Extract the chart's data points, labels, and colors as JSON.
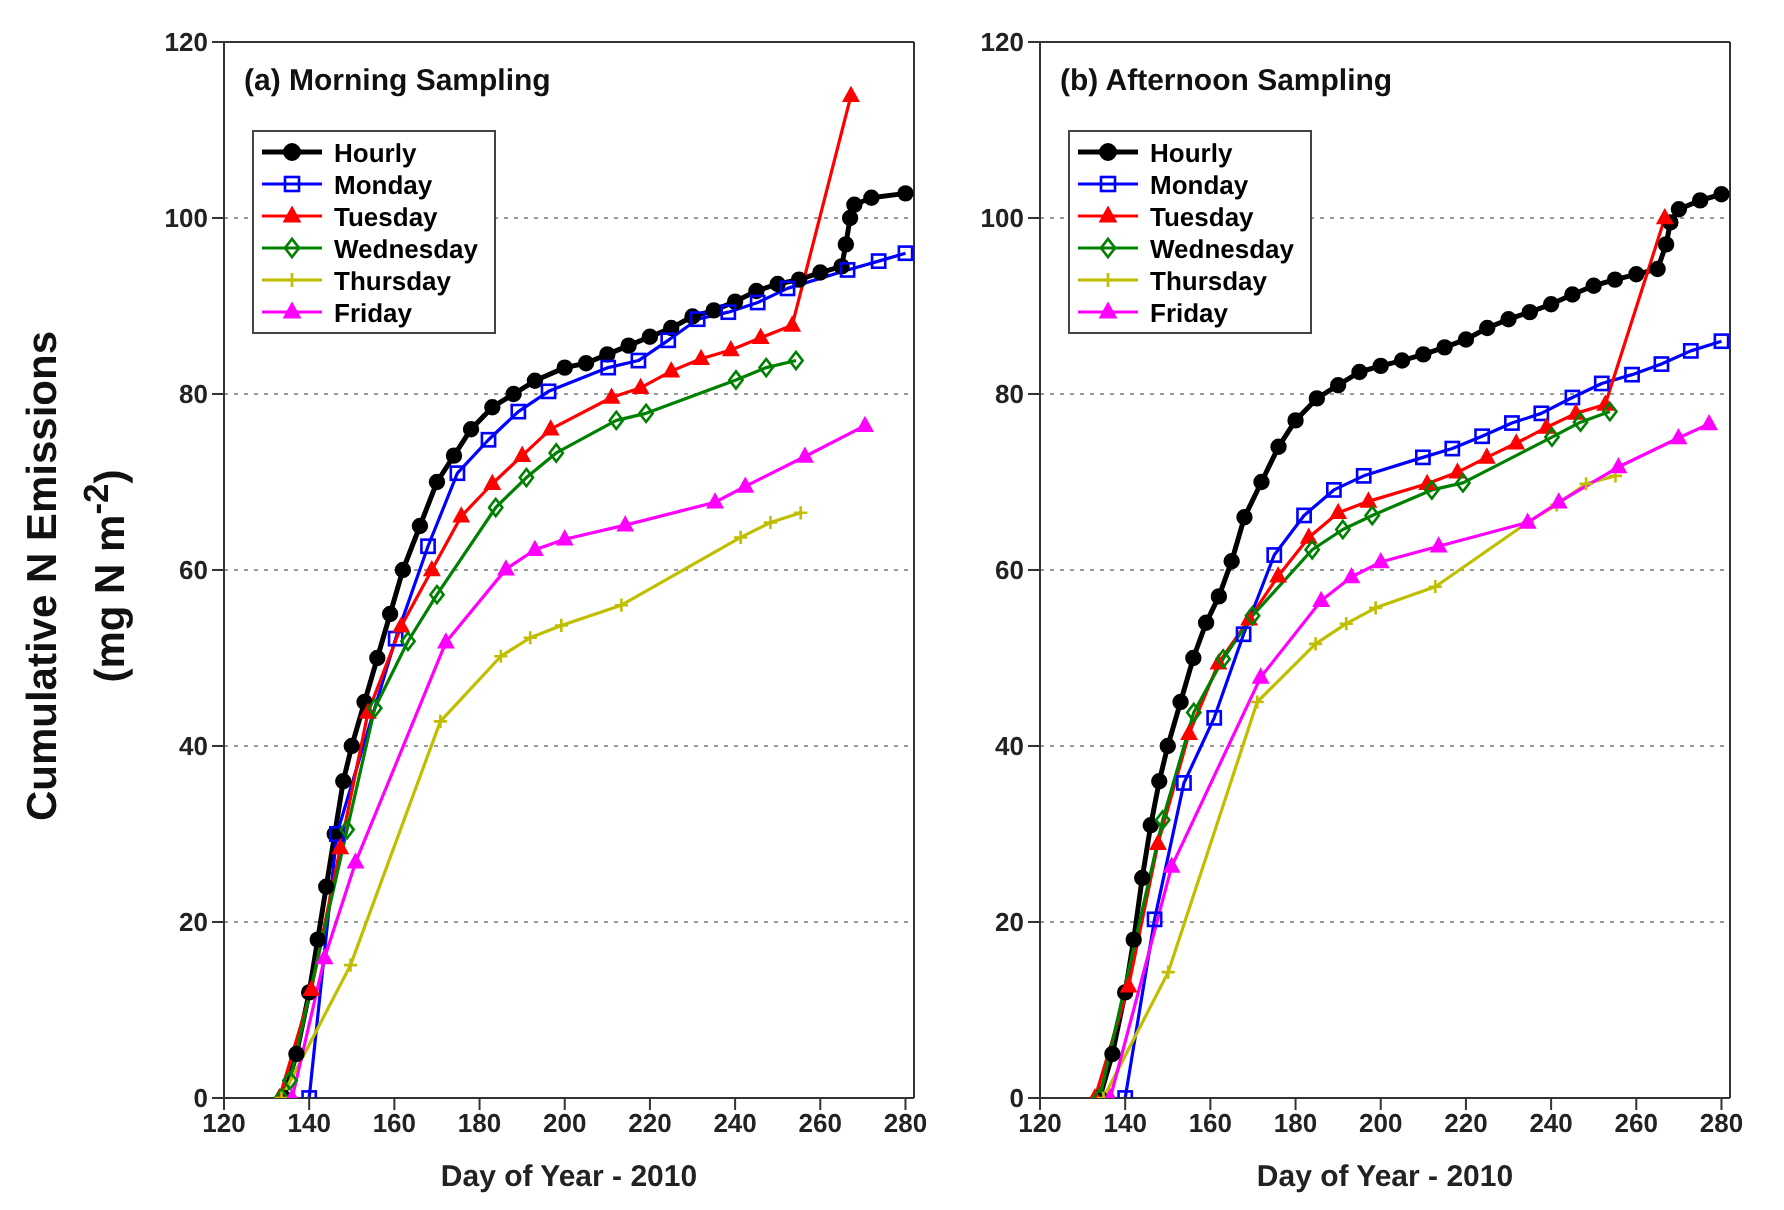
{
  "chart_data": [
    {
      "type": "line",
      "title": "(a) Morning Sampling",
      "xlabel": "Day of Year - 2010",
      "ylabel": "Cumulative N Emissions (mg N m$^{-2}$)",
      "xlim": [
        120,
        282
      ],
      "xticks": [
        120,
        140,
        160,
        180,
        200,
        220,
        240,
        260,
        280
      ],
      "ylim": [
        0,
        120
      ],
      "yticks": [
        0,
        20,
        40,
        60,
        80,
        100,
        120
      ],
      "grid": "y",
      "legend": "top left",
      "series": [
        {
          "name": "Hourly",
          "color": "#000000",
          "marker": "circle",
          "x": [
            134,
            137,
            140,
            142,
            144,
            146,
            148,
            150,
            153,
            156,
            159,
            162,
            166,
            170,
            174,
            178,
            183,
            188,
            193,
            200,
            205,
            210,
            215,
            220,
            225,
            230,
            235,
            240,
            245,
            250,
            255,
            260,
            265,
            266,
            267,
            268,
            272,
            280
          ],
          "values": [
            0,
            5,
            12,
            18,
            24,
            30,
            36,
            40,
            45,
            50,
            55,
            60,
            65,
            70,
            73,
            76,
            78.5,
            80,
            81.5,
            83,
            83.5,
            84.5,
            85.5,
            86.5,
            87.5,
            88.8,
            89.5,
            90.5,
            91.7,
            92.5,
            93,
            93.8,
            94.5,
            97,
            100,
            101.5,
            102.3,
            102.8
          ]
        },
        {
          "name": "Monday",
          "color": "#0000ff",
          "marker": "square",
          "x": [
            140,
            146.5,
            160.3,
            167.9,
            174.8,
            182.1,
            189.1,
            196.2,
            210.2,
            217.3,
            224.3,
            231.2,
            238.4,
            245.3,
            252.3,
            266.4,
            273.7,
            280
          ],
          "values": [
            0,
            30,
            52.2,
            62.7,
            71,
            74.8,
            78,
            80.3,
            83,
            83.8,
            86.1,
            88.5,
            89.3,
            90.4,
            92,
            94.1,
            95.1,
            96
          ]
        },
        {
          "name": "Tuesday",
          "color": "#ff0000",
          "marker": "triangle",
          "x": [
            133,
            140.5,
            147.3,
            153.8,
            161.6,
            168.8,
            175.7,
            183,
            190,
            196.7,
            211,
            217.8,
            225,
            232,
            239,
            246,
            253.4,
            267.2
          ],
          "values": [
            0,
            12.3,
            28.4,
            43.8,
            53.6,
            60,
            66.1,
            69.8,
            73,
            76,
            79.6,
            80.7,
            82.6,
            84,
            85,
            86.4,
            87.8,
            113.9
          ]
        },
        {
          "name": "Wednesday",
          "color": "#008000",
          "marker": "diamond",
          "x": [
            133.5,
            135.5,
            148.9,
            155.4,
            163.2,
            170,
            183.8,
            191,
            198,
            212.1,
            219.1,
            240.2,
            247.3,
            254.3
          ],
          "values": [
            0,
            2,
            30.5,
            44.3,
            51.9,
            57.2,
            67.1,
            70.5,
            73.3,
            77,
            77.8,
            81.6,
            83,
            83.8
          ]
        },
        {
          "name": "Thursday",
          "color": "#bfbf00",
          "marker": "cross",
          "x": [
            133.5,
            149.7,
            170.8,
            185,
            191.9,
            199.2,
            213.3,
            241.3,
            248.3,
            255.4
          ],
          "values": [
            0,
            15.1,
            42.8,
            50.2,
            52.3,
            53.7,
            56,
            63.7,
            65.4,
            66.5
          ]
        },
        {
          "name": "Friday",
          "color": "#ff00ff",
          "marker": "triangle",
          "x": [
            136,
            143.6,
            150.9,
            172.1,
            186.2,
            193,
            200,
            214.2,
            235.3,
            242.4,
            256.4,
            270.5
          ],
          "values": [
            0,
            15.9,
            26.8,
            51.8,
            60.1,
            62.3,
            63.5,
            65.1,
            67.7,
            69.5,
            72.9,
            76.4
          ]
        }
      ]
    },
    {
      "type": "line",
      "title": "(b) Afternoon Sampling",
      "xlabel": "Day of Year - 2010",
      "xlim": [
        120,
        282
      ],
      "xticks": [
        120,
        140,
        160,
        180,
        200,
        220,
        240,
        260,
        280
      ],
      "ylim": [
        0,
        120
      ],
      "yticks": [
        0,
        20,
        40,
        60,
        80,
        100,
        120
      ],
      "grid": "y",
      "legend": "top left",
      "series": [
        {
          "name": "Hourly",
          "color": "#000000",
          "marker": "circle",
          "x": [
            134,
            137,
            140,
            142,
            144,
            146,
            148,
            150,
            153,
            156,
            159,
            162,
            165,
            168,
            172,
            176,
            180,
            185,
            190,
            195,
            200,
            205,
            210,
            215,
            220,
            225,
            230,
            235,
            240,
            245,
            250,
            255,
            260,
            265,
            267,
            268,
            270,
            275,
            280
          ],
          "values": [
            0,
            5,
            12,
            18,
            25,
            31,
            36,
            40,
            45,
            50,
            54,
            57,
            61,
            66,
            70,
            74,
            77,
            79.5,
            81,
            82.5,
            83.2,
            83.8,
            84.5,
            85.3,
            86.2,
            87.5,
            88.5,
            89.3,
            90.2,
            91.3,
            92.3,
            93,
            93.6,
            94.2,
            97,
            99.5,
            101,
            102,
            102.7
          ]
        },
        {
          "name": "Monday",
          "color": "#0000ff",
          "marker": "square",
          "x": [
            140,
            146.9,
            153.8,
            160.9,
            167.8,
            175,
            182,
            189,
            196,
            209.9,
            216.8,
            223.8,
            230.8,
            237.7,
            245,
            251.9,
            259,
            265.9,
            272.8,
            280
          ],
          "values": [
            0,
            20.3,
            35.8,
            43.2,
            52.7,
            61.7,
            66.2,
            69.1,
            70.7,
            72.8,
            73.8,
            75.2,
            76.7,
            77.8,
            79.6,
            81.2,
            82.2,
            83.4,
            84.9,
            86
          ]
        },
        {
          "name": "Tuesday",
          "color": "#ff0000",
          "marker": "triangle",
          "x": [
            132.9,
            140.8,
            147.7,
            155,
            161.9,
            169.1,
            175.9,
            183.1,
            190,
            197.1,
            210.9,
            218,
            224.9,
            231.8,
            238.9,
            245.8,
            252.7,
            266.7
          ],
          "values": [
            0,
            12.7,
            28.9,
            41.4,
            49.4,
            54.4,
            59.3,
            63.7,
            66.5,
            67.8,
            69.8,
            71.1,
            72.8,
            74.4,
            76.2,
            77.8,
            78.8,
            100
          ]
        },
        {
          "name": "Wednesday",
          "color": "#008000",
          "marker": "diamond",
          "x": [
            134,
            148.8,
            156.1,
            163,
            169.9,
            183.9,
            191.1,
            198,
            212,
            219.3,
            240.2,
            246.9,
            253.8
          ],
          "values": [
            0,
            31.6,
            43.8,
            49.9,
            54.8,
            62.3,
            64.6,
            66.2,
            69.1,
            69.9,
            75.1,
            76.8,
            78
          ]
        },
        {
          "name": "Thursday",
          "color": "#bfbf00",
          "marker": "cross",
          "x": [
            134.9,
            150.1,
            171,
            184.7,
            191.9,
            198.8,
            212.8,
            234.5,
            241.3,
            248.2,
            255.1
          ],
          "values": [
            0,
            14.3,
            45,
            51.6,
            53.9,
            55.7,
            58.1,
            65.4,
            67.4,
            69.8,
            70.7
          ]
        },
        {
          "name": "Friday",
          "color": "#ff00ff",
          "marker": "triangle",
          "x": [
            136.5,
            150.9,
            171.8,
            186,
            193.1,
            200,
            213.6,
            234.5,
            241.8,
            255.8,
            269.9,
            277.1
          ],
          "values": [
            0,
            26.3,
            47.8,
            56.5,
            59.2,
            60.9,
            62.7,
            65.4,
            67.7,
            71.7,
            75,
            76.6
          ]
        }
      ]
    }
  ]
}
